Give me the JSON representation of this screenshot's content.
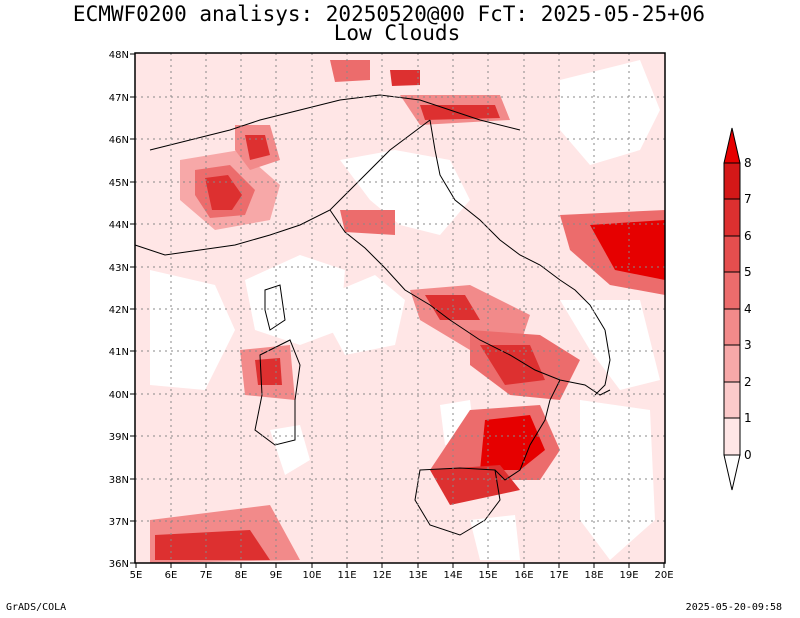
{
  "title": "ECMWF0200 analisys: 20250520@00 FcT: 2025-05-25+06",
  "subtitle": "Low Clouds",
  "footer": {
    "credit": "GrADS/COLA",
    "timestamp": "2025-05-20-09:58"
  },
  "map": {
    "lat_ticks": [
      "48N",
      "47N",
      "46N",
      "45N",
      "44N",
      "43N",
      "42N",
      "41N",
      "40N",
      "39N",
      "38N",
      "37N",
      "36N"
    ],
    "lon_ticks": [
      "5E",
      "6E",
      "7E",
      "8E",
      "9E",
      "10E",
      "11E",
      "12E",
      "13E",
      "14E",
      "15E",
      "16E",
      "17E",
      "18E",
      "19E",
      "20E"
    ],
    "lat_range": [
      36,
      48
    ],
    "lon_range": [
      5,
      20
    ],
    "grid": true
  },
  "colorbar": {
    "labels": [
      "0",
      "1",
      "2",
      "3",
      "4",
      "5",
      "6",
      "7",
      "8"
    ],
    "colors": [
      "#ffe6e6",
      "#fccaca",
      "#f7a8a8",
      "#f28a8a",
      "#ec6c6c",
      "#e54e4e",
      "#dd3030",
      "#d41818",
      "#e60000"
    ]
  }
}
